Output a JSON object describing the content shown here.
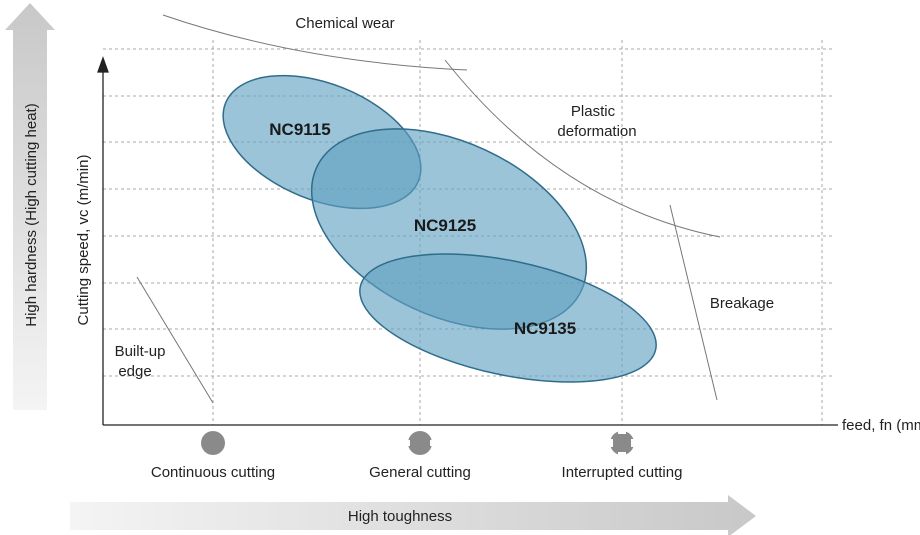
{
  "axes": {
    "y_label": "Cutting speed, vc (m/min)",
    "x_label": "feed, fn (mm/rev)"
  },
  "side_arrows": {
    "vertical": "High hardness (High cutting heat)",
    "horizontal": "High toughness"
  },
  "regions": {
    "chemical_wear": "Chemical wear",
    "plastic_deformation": [
      "Plastic",
      "deformation"
    ],
    "breakage": "Breakage",
    "built_up_edge": [
      "Built-up",
      "edge"
    ]
  },
  "grades": [
    "NC9115",
    "NC9125",
    "NC9135"
  ],
  "cutting_types": [
    "Continuous cutting",
    "General cutting",
    "Interrupted cutting"
  ]
}
